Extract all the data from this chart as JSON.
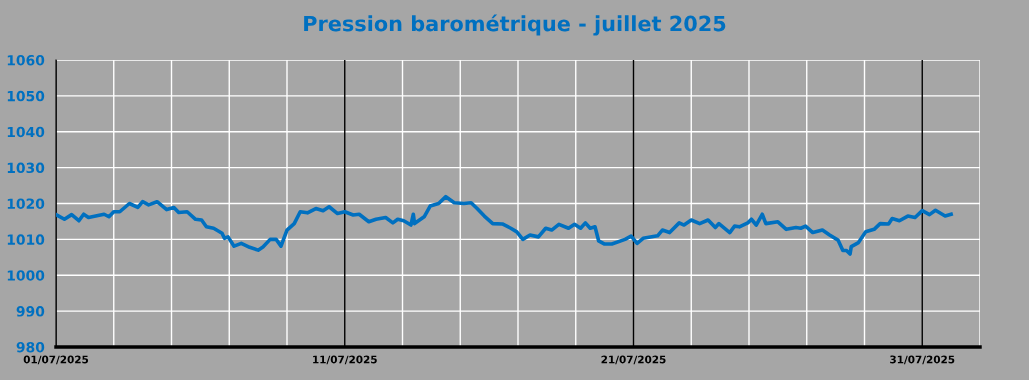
{
  "chart_data": {
    "type": "line",
    "title": "Pression barométrique - juillet 2025",
    "x": [
      "2025-07-01T00:00",
      "2025-07-01T07:00",
      "2025-07-01T13:00",
      "2025-07-01T19:00",
      "2025-07-01T23:00",
      "2025-07-02T03:00",
      "2025-07-02T16:00",
      "2025-07-02T20:00",
      "2025-07-03T00:00",
      "2025-07-03T05:00",
      "2025-07-03T13:00",
      "2025-07-03T20:00",
      "2025-07-04T00:00",
      "2025-07-04T05:00",
      "2025-07-04T12:00",
      "2025-07-04T20:00",
      "2025-07-05T02:00",
      "2025-07-05T06:00",
      "2025-07-05T13:00",
      "2025-07-05T20:00",
      "2025-07-06T01:00",
      "2025-07-06T05:00",
      "2025-07-06T11:00",
      "2025-07-06T18:00",
      "2025-07-06T20:00",
      "2025-07-06T23:00",
      "2025-07-07T04:00",
      "2025-07-07T10:00",
      "2025-07-07T17:00",
      "2025-07-08T00:00",
      "2025-07-08T04:00",
      "2025-07-08T10:00",
      "2025-07-08T15:00",
      "2025-07-08T19:00",
      "2025-07-09T00:00",
      "2025-07-09T06:00",
      "2025-07-09T11:00",
      "2025-07-09T17:00",
      "2025-07-10T00:00",
      "2025-07-10T06:00",
      "2025-07-10T11:00",
      "2025-07-10T18:00",
      "2025-07-11T00:00",
      "2025-07-11T07:00",
      "2025-07-11T12:00",
      "2025-07-11T20:00",
      "2025-07-12T02:00",
      "2025-07-12T10:00",
      "2025-07-12T16:00",
      "2025-07-12T20:00",
      "2025-07-13T01:00",
      "2025-07-13T07:00",
      "2025-07-13T09:00",
      "2025-07-13T10:00",
      "2025-07-13T18:00",
      "2025-07-13T23:00",
      "2025-07-14T06:00",
      "2025-07-14T12:00",
      "2025-07-14T19:00",
      "2025-07-15T03:00",
      "2025-07-15T09:00",
      "2025-07-15T14:00",
      "2025-07-15T20:00",
      "2025-07-16T03:00",
      "2025-07-16T11:00",
      "2025-07-16T18:00",
      "2025-07-16T23:00",
      "2025-07-17T04:00",
      "2025-07-17T10:00",
      "2025-07-17T17:00",
      "2025-07-17T23:00",
      "2025-07-18T04:00",
      "2025-07-18T10:00",
      "2025-07-18T18:00",
      "2025-07-18T23:00",
      "2025-07-19T04:00",
      "2025-07-19T08:00",
      "2025-07-19T12:00",
      "2025-07-19T16:00",
      "2025-07-19T19:00",
      "2025-07-20T00:00",
      "2025-07-20T06:00",
      "2025-07-20T17:00",
      "2025-07-20T22:00",
      "2025-07-21T03:00",
      "2025-07-21T08:00",
      "2025-07-21T20:00",
      "2025-07-22T00:00",
      "2025-07-22T06:00",
      "2025-07-22T14:00",
      "2025-07-22T18:00",
      "2025-07-23T00:00",
      "2025-07-23T07:00",
      "2025-07-23T14:00",
      "2025-07-23T20:00",
      "2025-07-23T23:00",
      "2025-07-24T08:00",
      "2025-07-24T12:00",
      "2025-07-24T16:00",
      "2025-07-24T23:00",
      "2025-07-25T02:00",
      "2025-07-25T06:00",
      "2025-07-25T11:00",
      "2025-07-25T14:00",
      "2025-07-26T00:00",
      "2025-07-26T07:00",
      "2025-07-26T15:00",
      "2025-07-26T19:00",
      "2025-07-26T23:00",
      "2025-07-27T05:00",
      "2025-07-27T13:00",
      "2025-07-27T19:00",
      "2025-07-28T02:00",
      "2025-07-28T06:00",
      "2025-07-28T09:00",
      "2025-07-28T12:00",
      "2025-07-28T13:00",
      "2025-07-28T19:00",
      "2025-07-29T01:00",
      "2025-07-29T08:00",
      "2025-07-29T13:00",
      "2025-07-29T20:00",
      "2025-07-29T23:00",
      "2025-07-30T05:00",
      "2025-07-30T12:00",
      "2025-07-30T18:00",
      "2025-07-31T00:00",
      "2025-07-31T06:00",
      "2025-07-31T11:00",
      "2025-07-31T19:00",
      "2025-08-01T00:00"
    ],
    "series": [
      {
        "color": "#0070c0",
        "values": [
          1016.9,
          1015.6,
          1016.9,
          1015.2,
          1017.0,
          1016.1,
          1017.0,
          1016.3,
          1017.7,
          1017.7,
          1020.0,
          1018.9,
          1020.5,
          1019.6,
          1020.5,
          1018.3,
          1018.9,
          1017.5,
          1017.7,
          1015.6,
          1015.4,
          1013.5,
          1013.1,
          1011.7,
          1010.3,
          1010.7,
          1008.1,
          1008.9,
          1007.8,
          1007.0,
          1007.9,
          1010.0,
          1010.0,
          1008.1,
          1012.6,
          1014.4,
          1017.7,
          1017.4,
          1018.6,
          1018.0,
          1019.1,
          1017.2,
          1017.7,
          1016.8,
          1017.0,
          1014.9,
          1015.6,
          1016.1,
          1014.6,
          1015.6,
          1015.2,
          1014.0,
          1017.0,
          1014.4,
          1016.3,
          1019.3,
          1020.0,
          1021.9,
          1020.2,
          1020.0,
          1020.2,
          1018.6,
          1016.5,
          1014.4,
          1014.3,
          1013.1,
          1012.1,
          1010.0,
          1011.2,
          1010.7,
          1013.1,
          1012.6,
          1014.2,
          1013.1,
          1014.2,
          1013.1,
          1014.6,
          1013.1,
          1013.5,
          1009.6,
          1008.7,
          1008.7,
          1010.0,
          1010.9,
          1008.9,
          1010.3,
          1011.0,
          1012.6,
          1011.9,
          1014.6,
          1014.0,
          1015.4,
          1014.4,
          1015.4,
          1013.3,
          1014.4,
          1011.9,
          1013.7,
          1013.5,
          1014.6,
          1015.6,
          1014.0,
          1017.0,
          1014.4,
          1014.9,
          1012.8,
          1013.3,
          1013.1,
          1013.7,
          1011.9,
          1012.6,
          1011.2,
          1009.8,
          1006.9,
          1006.9,
          1005.9,
          1008.0,
          1009.1,
          1012.1,
          1012.8,
          1014.4,
          1014.3,
          1015.8,
          1015.2,
          1016.5,
          1016.1,
          1018.0,
          1016.9,
          1018.1,
          1016.5,
          1017.0
        ]
      }
    ],
    "xlim": [
      "2025-07-01T00:00",
      "2025-08-02T00:00"
    ],
    "xticks": [
      {
        "value": "2025-07-01",
        "label": "01/07/2025"
      },
      {
        "value": "2025-07-03",
        "label": null
      },
      {
        "value": "2025-07-05",
        "label": null
      },
      {
        "value": "2025-07-07",
        "label": null
      },
      {
        "value": "2025-07-09",
        "label": null
      },
      {
        "value": "2025-07-11",
        "label": "11/07/2025"
      },
      {
        "value": "2025-07-13",
        "label": null
      },
      {
        "value": "2025-07-15",
        "label": null
      },
      {
        "value": "2025-07-17",
        "label": null
      },
      {
        "value": "2025-07-19",
        "label": null
      },
      {
        "value": "2025-07-21",
        "label": "21/07/2025"
      },
      {
        "value": "2025-07-23",
        "label": null
      },
      {
        "value": "2025-07-25",
        "label": null
      },
      {
        "value": "2025-07-27",
        "label": null
      },
      {
        "value": "2025-07-29",
        "label": null
      },
      {
        "value": "2025-07-31",
        "label": "31/07/2025"
      },
      {
        "value": "2025-08-02",
        "label": null
      }
    ],
    "ylim": [
      980,
      1060
    ],
    "yticks": [
      980,
      990,
      1000,
      1010,
      1020,
      1030,
      1040,
      1050,
      1060
    ],
    "grid": true,
    "marker": "none",
    "line_style": "solid"
  }
}
